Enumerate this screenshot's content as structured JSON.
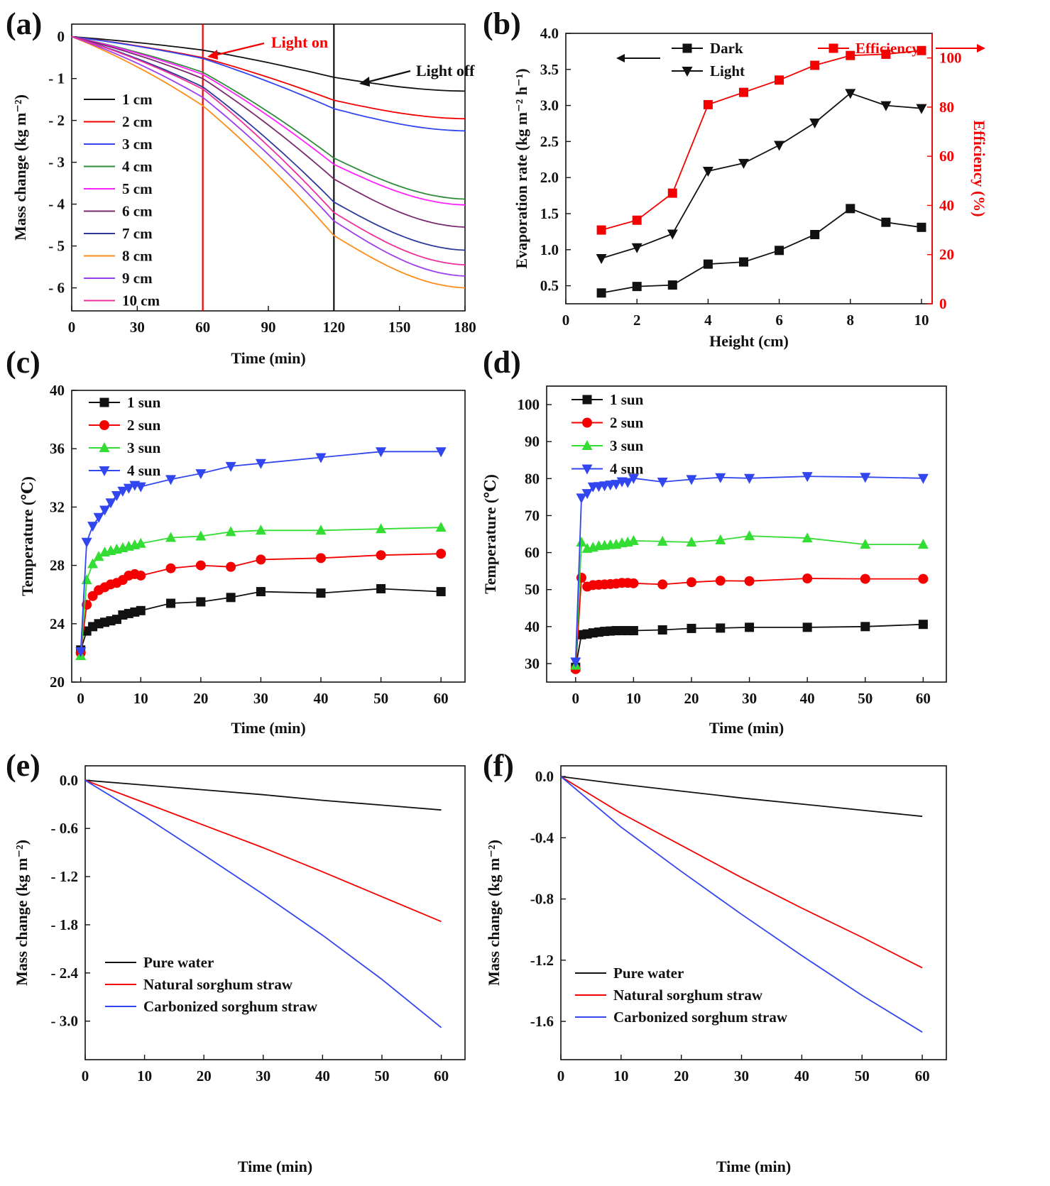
{
  "figure": {
    "description": "Six-panel figure (a)-(f) of solar evaporation experiments"
  },
  "colors": {
    "black": "#111111",
    "red": "#f40000",
    "blue": "#3246f0",
    "green": "#2e8b3a",
    "magenta": "#ff22ff",
    "purple": "#7a2a6e",
    "navy": "#2d3a9c",
    "orange": "#ff8c1a",
    "violet": "#9d3df0",
    "pink": "#f0309a",
    "lightgreen": "#33dd33"
  },
  "chart_data": [
    {
      "id": "a",
      "panel_label": "(a)",
      "type": "line",
      "xlabel": "Time (min)",
      "ylabel": "Mass change (kg m⁻²)",
      "xlim": [
        0,
        180
      ],
      "ylim": [
        -6.55,
        0.3
      ],
      "xticks": [
        0,
        30,
        60,
        90,
        120,
        150,
        180
      ],
      "xtick_labels": [
        "0",
        "30",
        "60",
        "90",
        "120",
        "150",
        "180"
      ],
      "yticks": [
        0,
        -1,
        -2,
        -3,
        -4,
        -5,
        -6
      ],
      "ytick_labels": [
        "0",
        "- 1",
        "- 2",
        "- 3",
        "- 4",
        "- 5",
        "- 6"
      ],
      "vlines": [
        {
          "x": 60,
          "color": "#f40000"
        },
        {
          "x": 120,
          "color": "#111111"
        }
      ],
      "annotations": [
        {
          "text": "Light on",
          "color": "#f40000"
        },
        {
          "text": "Light off",
          "color": "#111111"
        }
      ],
      "x": [
        0,
        60,
        120,
        180
      ],
      "series": [
        {
          "name": "1 cm",
          "color": "#111111",
          "values": [
            0,
            -0.32,
            -0.97,
            -1.3
          ]
        },
        {
          "name": "2 cm",
          "color": "#f40000",
          "values": [
            0,
            -0.5,
            -1.52,
            -1.96
          ]
        },
        {
          "name": "3 cm",
          "color": "#3246f0",
          "values": [
            0,
            -0.52,
            -1.72,
            -2.25
          ]
        },
        {
          "name": "4 cm",
          "color": "#2e8b3a",
          "values": [
            0,
            -0.85,
            -2.9,
            -3.88
          ]
        },
        {
          "name": "5 cm",
          "color": "#ff22ff",
          "values": [
            0,
            -0.9,
            -3.05,
            -4.02
          ]
        },
        {
          "name": "6 cm",
          "color": "#7a2a6e",
          "values": [
            0,
            -1.0,
            -3.4,
            -4.55
          ]
        },
        {
          "name": "7 cm",
          "color": "#2d3a9c",
          "values": [
            0,
            -1.2,
            -3.95,
            -5.1
          ]
        },
        {
          "name": "8 cm",
          "color": "#ff8c1a",
          "values": [
            0,
            -1.65,
            -4.75,
            -6.0
          ]
        },
        {
          "name": "9 cm",
          "color": "#9d3df0",
          "values": [
            0,
            -1.45,
            -4.4,
            -5.72
          ]
        },
        {
          "name": "10 cm",
          "color": "#f0309a",
          "values": [
            0,
            -1.25,
            -4.2,
            -5.45
          ]
        }
      ]
    },
    {
      "id": "b",
      "panel_label": "(b)",
      "type": "line",
      "xlabel": "Height (cm)",
      "ylabel": "Evaporation rate (kg m⁻² h⁻¹)",
      "y2label": "Efficiency (%)",
      "xlim": [
        0,
        10.3
      ],
      "ylim": [
        0.25,
        4.0
      ],
      "y2lim": [
        0,
        110
      ],
      "xticks": [
        0,
        2,
        4,
        6,
        8,
        10
      ],
      "xtick_labels": [
        "0",
        "2",
        "4",
        "6",
        "8",
        "10"
      ],
      "yticks": [
        0.5,
        1.0,
        1.5,
        2.0,
        2.5,
        3.0,
        3.5,
        4.0
      ],
      "ytick_labels": [
        "0.5",
        "1.0",
        "1.5",
        "2.0",
        "2.5",
        "3.0",
        "3.5",
        "4.0"
      ],
      "y2ticks": [
        0,
        20,
        40,
        60,
        80,
        100
      ],
      "y2tick_labels": [
        "0",
        "20",
        "40",
        "60",
        "80",
        "100"
      ],
      "x": [
        1,
        2,
        3,
        4,
        5,
        6,
        7,
        8,
        9,
        10
      ],
      "series": [
        {
          "name": "Dark",
          "color": "#111111",
          "marker": "square",
          "axis": "left",
          "values": [
            0.4,
            0.49,
            0.51,
            0.8,
            0.83,
            0.99,
            1.21,
            1.57,
            1.38,
            1.31
          ]
        },
        {
          "name": "Light",
          "color": "#111111",
          "marker": "triangle-down",
          "axis": "left",
          "values": [
            0.88,
            1.03,
            1.22,
            2.09,
            2.2,
            2.45,
            2.76,
            3.17,
            3.0,
            2.96
          ]
        },
        {
          "name": "Efficiency",
          "color": "#f40000",
          "marker": "square",
          "axis": "right",
          "values": [
            30,
            34,
            45,
            81,
            86,
            91,
            97,
            101,
            101.5,
            103
          ]
        }
      ]
    },
    {
      "id": "c",
      "panel_label": "(c)",
      "type": "line",
      "xlabel": "Time (min)",
      "ylabel": "Temperature (℃)",
      "xlim": [
        -1.5,
        64
      ],
      "ylim": [
        20,
        40
      ],
      "xticks": [
        0,
        10,
        20,
        30,
        40,
        50,
        60
      ],
      "xtick_labels": [
        "0",
        "10",
        "20",
        "30",
        "40",
        "50",
        "60"
      ],
      "yticks": [
        20,
        24,
        28,
        32,
        36,
        40
      ],
      "ytick_labels": [
        "20",
        "24",
        "28",
        "32",
        "36",
        "40"
      ],
      "x": [
        0,
        1,
        2,
        3,
        4,
        5,
        6,
        7,
        8,
        9,
        10,
        15,
        20,
        25,
        30,
        40,
        50,
        60
      ],
      "series": [
        {
          "name": "1 sun",
          "color": "#111111",
          "marker": "square",
          "values": [
            22.2,
            23.5,
            23.8,
            24.0,
            24.1,
            24.2,
            24.3,
            24.6,
            24.7,
            24.8,
            24.9,
            25.4,
            25.5,
            25.8,
            26.2,
            26.1,
            26.4,
            26.2
          ]
        },
        {
          "name": "2 sun",
          "color": "#f40000",
          "marker": "circle",
          "values": [
            22.0,
            25.3,
            25.9,
            26.3,
            26.5,
            26.7,
            26.8,
            27.0,
            27.3,
            27.4,
            27.3,
            27.8,
            28.0,
            27.9,
            28.4,
            28.5,
            28.7,
            28.8
          ]
        },
        {
          "name": "3 sun",
          "color": "#33dd33",
          "marker": "triangle-up",
          "values": [
            21.8,
            27.0,
            28.1,
            28.6,
            28.9,
            29.0,
            29.1,
            29.2,
            29.3,
            29.4,
            29.5,
            29.9,
            30.0,
            30.3,
            30.4,
            30.4,
            30.5,
            30.6
          ]
        },
        {
          "name": "4 sun",
          "color": "#3246f0",
          "marker": "triangle-down",
          "values": [
            22.1,
            29.6,
            30.7,
            31.3,
            31.8,
            32.3,
            32.8,
            33.1,
            33.3,
            33.5,
            33.4,
            33.9,
            34.3,
            34.8,
            35.0,
            35.4,
            35.8,
            35.8
          ]
        }
      ]
    },
    {
      "id": "d",
      "panel_label": "(d)",
      "type": "line",
      "xlabel": "Time (min)",
      "ylabel": "Temperature (℃)",
      "xlim": [
        -5,
        64
      ],
      "ylim": [
        25,
        105
      ],
      "xticks": [
        0,
        10,
        20,
        30,
        40,
        50,
        60
      ],
      "xtick_labels": [
        "0",
        "10",
        "20",
        "30",
        "40",
        "50",
        "60"
      ],
      "yticks": [
        30,
        40,
        50,
        60,
        70,
        80,
        90,
        100
      ],
      "ytick_labels": [
        "30",
        "40",
        "50",
        "60",
        "70",
        "80",
        "90",
        "100"
      ],
      "x": [
        0,
        1,
        2,
        3,
        4,
        5,
        6,
        7,
        8,
        9,
        10,
        15,
        20,
        25,
        30,
        40,
        50,
        60
      ],
      "series": [
        {
          "name": "1 sun",
          "color": "#111111",
          "marker": "square",
          "values": [
            29.0,
            37.8,
            38.0,
            38.3,
            38.5,
            38.7,
            38.8,
            38.9,
            38.9,
            38.9,
            38.9,
            39.1,
            39.5,
            39.6,
            39.8,
            39.8,
            40.0,
            40.6
          ]
        },
        {
          "name": "2 sun",
          "color": "#f40000",
          "marker": "circle",
          "values": [
            28.5,
            53.2,
            50.8,
            51.2,
            51.3,
            51.4,
            51.5,
            51.6,
            51.8,
            51.8,
            51.7,
            51.4,
            52.0,
            52.4,
            52.3,
            53.0,
            52.9,
            52.9
          ]
        },
        {
          "name": "3 sun",
          "color": "#33dd33",
          "marker": "triangle-up",
          "values": [
            29.5,
            62.8,
            61.1,
            61.4,
            61.8,
            61.9,
            62.1,
            62.2,
            62.6,
            62.8,
            63.2,
            63.0,
            62.8,
            63.4,
            64.5,
            63.9,
            62.2,
            62.2
          ]
        },
        {
          "name": "4 sun",
          "color": "#3246f0",
          "marker": "triangle-down",
          "values": [
            30.5,
            74.8,
            76.0,
            77.8,
            77.9,
            78.1,
            78.3,
            78.5,
            79.2,
            79.0,
            80.1,
            79.1,
            79.8,
            80.3,
            80.1,
            80.6,
            80.4,
            80.1
          ]
        }
      ]
    },
    {
      "id": "e",
      "panel_label": "(e)",
      "type": "line",
      "xlabel": "Time (min)",
      "ylabel": "Mass change (kg m⁻²)",
      "xlim": [
        0,
        64
      ],
      "ylim": [
        -3.48,
        0.18
      ],
      "xticks": [
        0,
        10,
        20,
        30,
        40,
        50,
        60
      ],
      "xtick_labels": [
        "0",
        "10",
        "20",
        "30",
        "40",
        "50",
        "60"
      ],
      "yticks": [
        0,
        -0.6,
        -1.2,
        -1.8,
        -2.4,
        -3.0
      ],
      "ytick_labels": [
        "0.0",
        "- 0.6",
        "- 1.2",
        "- 1.8",
        "- 2.4",
        "- 3.0"
      ],
      "x": [
        0,
        10,
        20,
        30,
        40,
        50,
        60
      ],
      "series": [
        {
          "name": "Pure water",
          "color": "#111111",
          "values": [
            0,
            -0.06,
            -0.12,
            -0.18,
            -0.25,
            -0.31,
            -0.37
          ]
        },
        {
          "name": "Natural sorghum straw",
          "color": "#f40000",
          "values": [
            0,
            -0.28,
            -0.56,
            -0.84,
            -1.14,
            -1.45,
            -1.76
          ]
        },
        {
          "name": "Carbonized sorghum straw",
          "color": "#3246f0",
          "values": [
            0,
            -0.45,
            -0.93,
            -1.42,
            -1.93,
            -2.48,
            -3.08
          ]
        }
      ]
    },
    {
      "id": "f",
      "panel_label": "(f)",
      "type": "line",
      "xlabel": "Time (min)",
      "ylabel": "Mass change (kg m⁻²)",
      "xlim": [
        0,
        64
      ],
      "ylim": [
        -1.85,
        0.07
      ],
      "xticks": [
        0,
        10,
        20,
        30,
        40,
        50,
        60
      ],
      "xtick_labels": [
        "0",
        "10",
        "20",
        "30",
        "40",
        "50",
        "60"
      ],
      "yticks": [
        0,
        -0.4,
        -0.8,
        -1.2,
        -1.6
      ],
      "ytick_labels": [
        "0.0",
        "-0.4",
        "-0.8",
        "-1.2",
        "-1.6"
      ],
      "x": [
        0,
        10,
        20,
        30,
        40,
        50,
        60
      ],
      "series": [
        {
          "name": "Pure water",
          "color": "#111111",
          "values": [
            0,
            -0.05,
            -0.095,
            -0.14,
            -0.18,
            -0.22,
            -0.26
          ]
        },
        {
          "name": "Natural sorghum straw",
          "color": "#f40000",
          "values": [
            0,
            -0.24,
            -0.45,
            -0.66,
            -0.86,
            -1.05,
            -1.25
          ]
        },
        {
          "name": "Carbonized sorghum straw",
          "color": "#3246f0",
          "values": [
            0,
            -0.33,
            -0.62,
            -0.9,
            -1.17,
            -1.43,
            -1.67
          ]
        }
      ]
    }
  ]
}
